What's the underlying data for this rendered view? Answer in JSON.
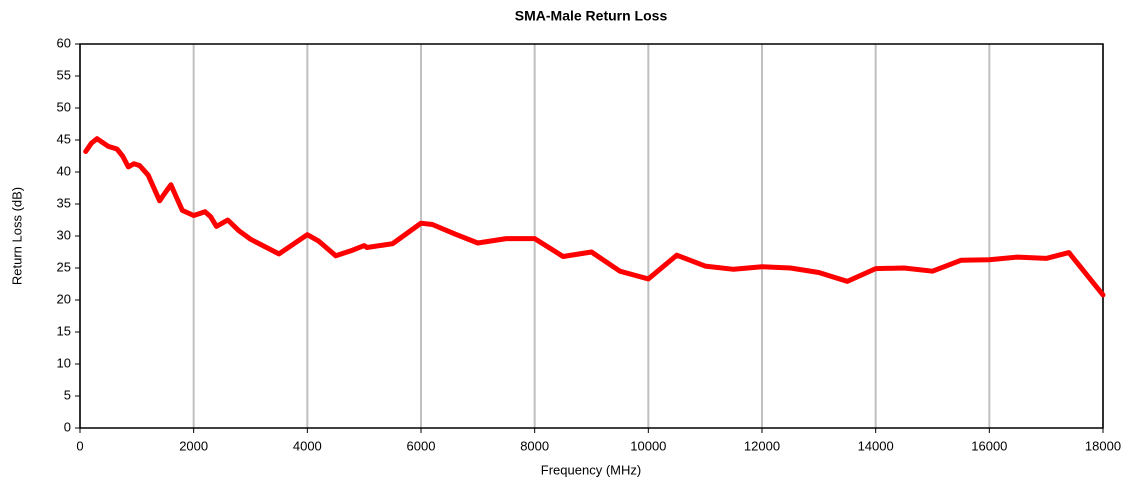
{
  "chart_data": {
    "type": "line",
    "title": "SMA-Male Return Loss",
    "x_label": "Frequency (MHz)",
    "y_label": "Return Loss (dB)",
    "x": [
      100,
      200,
      300,
      400,
      500,
      650,
      750,
      850,
      950,
      1050,
      1200,
      1300,
      1400,
      1500,
      1600,
      1700,
      1800,
      2000,
      2200,
      2300,
      2400,
      2600,
      2800,
      3000,
      3500,
      4000,
      4200,
      4500,
      4800,
      5000,
      5050,
      5500,
      6000,
      6200,
      6600,
      7000,
      7500,
      8000,
      8500,
      9000,
      9500,
      10000,
      10500,
      11000,
      11500,
      12000,
      12500,
      13000,
      13500,
      14000,
      14500,
      15000,
      15500,
      16000,
      16500,
      17000,
      17400,
      18000
    ],
    "series": [
      {
        "name": "Return Loss",
        "color": "#ff0000",
        "values": [
          43.2,
          44.5,
          45.2,
          44.6,
          44.0,
          43.6,
          42.5,
          40.8,
          41.3,
          41.0,
          39.5,
          37.5,
          35.5,
          36.8,
          38.0,
          36.0,
          34.0,
          33.2,
          33.8,
          33.0,
          31.5,
          32.5,
          30.8,
          29.5,
          27.2,
          30.2,
          29.2,
          26.9,
          27.8,
          28.5,
          28.2,
          28.8,
          32.0,
          31.8,
          30.3,
          28.9,
          29.6,
          29.6,
          26.8,
          27.5,
          24.5,
          23.3,
          27.0,
          25.3,
          24.8,
          25.2,
          25.0,
          24.3,
          22.9,
          24.9,
          25.0,
          24.5,
          26.2,
          26.3,
          26.7,
          26.5,
          27.4,
          20.8
        ]
      }
    ],
    "xlim": [
      0,
      18000
    ],
    "xticks": [
      0,
      2000,
      4000,
      6000,
      8000,
      10000,
      12000,
      14000,
      16000,
      18000
    ],
    "ylim": [
      0,
      60
    ],
    "yticks": [
      0,
      5,
      10,
      15,
      20,
      25,
      30,
      35,
      40,
      45,
      50,
      55,
      60
    ],
    "grid": "x"
  }
}
